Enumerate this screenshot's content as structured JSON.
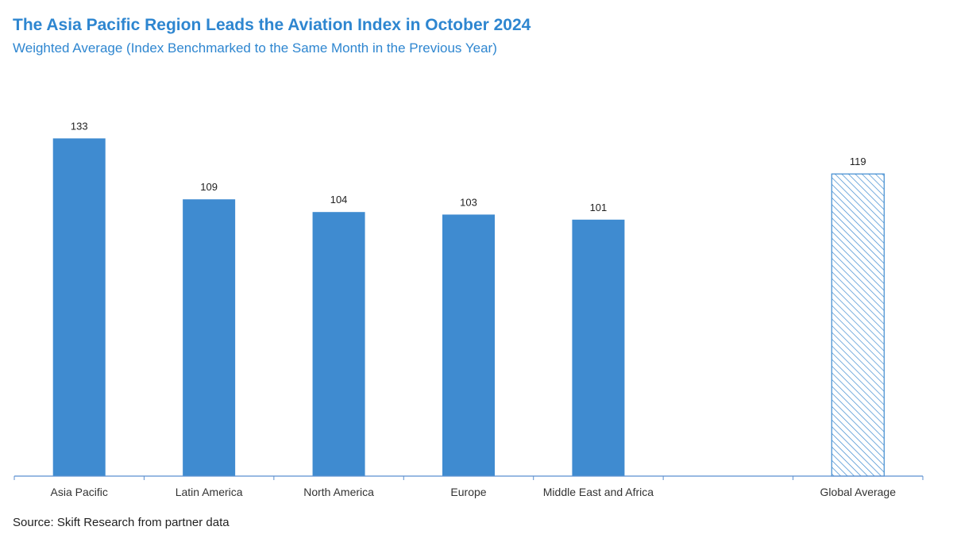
{
  "header": {
    "title": "The Asia Pacific Region Leads the Aviation Index in October 2024",
    "subtitle": "Weighted Average (Index Benchmarked to the Same Month in the Previous Year)"
  },
  "footer": {
    "source": "Source: Skift Research from partner data"
  },
  "chart_data": {
    "type": "bar",
    "title": "The Asia Pacific Region Leads the Aviation Index in October 2024",
    "subtitle": "Weighted Average (Index Benchmarked to the Same Month in the Previous Year)",
    "categories": [
      "Asia Pacific",
      "Latin America",
      "North America",
      "Europe",
      "Middle East and Africa",
      "",
      "Global Average"
    ],
    "values": [
      133,
      109,
      104,
      103,
      101,
      null,
      119
    ],
    "bar_styles": [
      "solid",
      "solid",
      "solid",
      "solid",
      "solid",
      "none",
      "hatched"
    ],
    "data_labels": [
      "133",
      "109",
      "104",
      "103",
      "101",
      "",
      "119"
    ],
    "xlabel": "",
    "ylabel": "",
    "ylim": [
      0,
      140
    ],
    "grid": false,
    "legend": "none",
    "colors": {
      "bar": "#3f8bd0",
      "hatch": "#3f8bd0",
      "axis": "#5b8fd0"
    }
  }
}
